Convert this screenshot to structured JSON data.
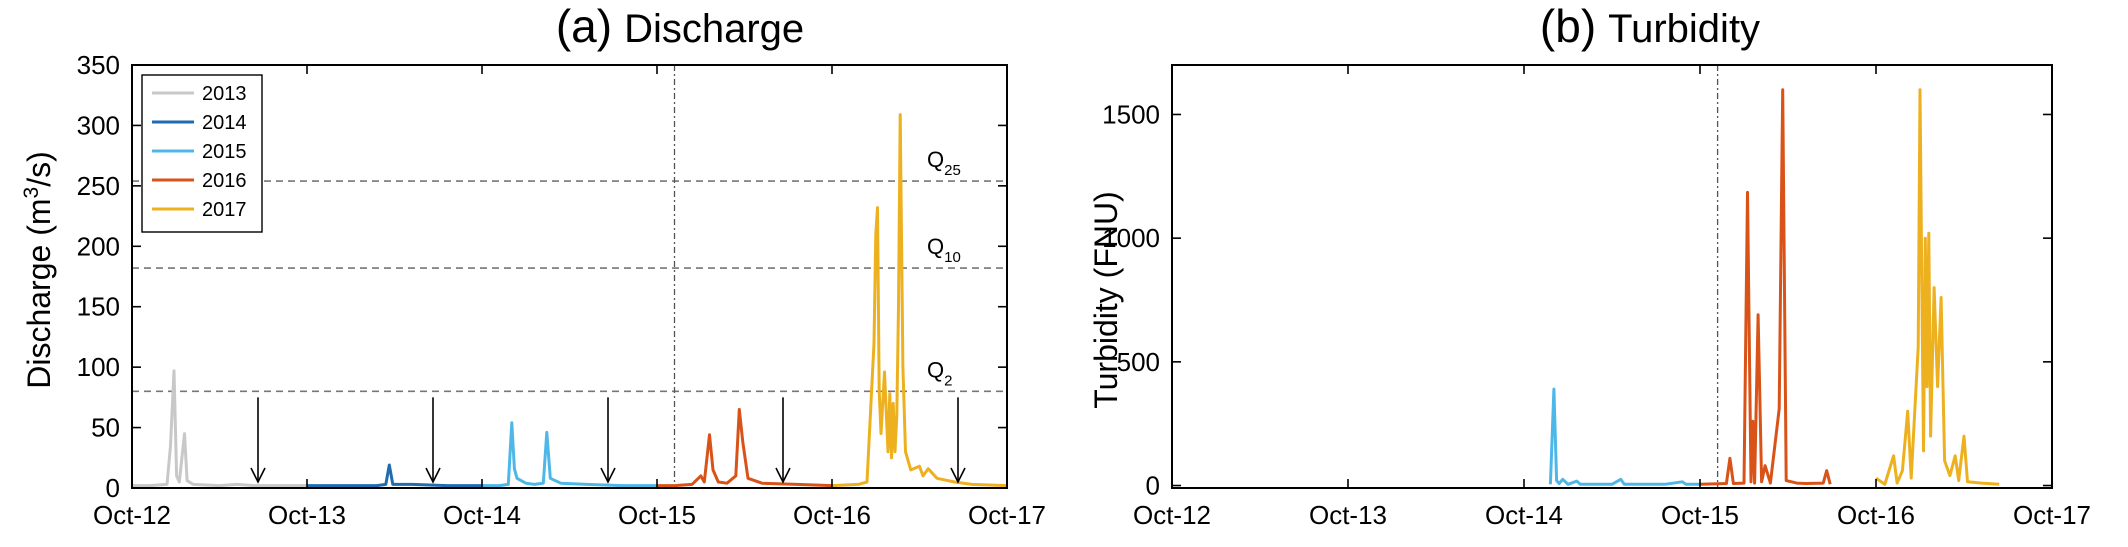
{
  "chart_data": [
    {
      "type": "line",
      "title": "(a) Discharge",
      "title_prefix": "(a)",
      "title_main": "Discharge",
      "xlabel": "",
      "ylabel_pre": "Discharge (m",
      "ylabel_sup": "3",
      "ylabel_post": "/s)",
      "xlim": [
        0,
        5
      ],
      "ylim": [
        0,
        350
      ],
      "xticks": [
        {
          "pos": 0,
          "label": "Oct-12"
        },
        {
          "pos": 1,
          "label": "Oct-13"
        },
        {
          "pos": 2,
          "label": "Oct-14"
        },
        {
          "pos": 3,
          "label": "Oct-15"
        },
        {
          "pos": 4,
          "label": "Oct-16"
        },
        {
          "pos": 5,
          "label": "Oct-17"
        }
      ],
      "yticks": [
        0,
        50,
        100,
        150,
        200,
        250,
        300,
        350
      ],
      "legend_position": "top-left",
      "grid": false,
      "reference_lines": [
        {
          "y": 254,
          "label_main": "Q",
          "label_sub": "25"
        },
        {
          "y": 182,
          "label_main": "Q",
          "label_sub": "10"
        },
        {
          "y": 80,
          "label_main": "Q",
          "label_sub": "2"
        }
      ],
      "vertical_reference": {
        "x": 3.1
      },
      "arrows": [
        {
          "x": 0.72,
          "from_y": 75,
          "to_y": 5
        },
        {
          "x": 1.72,
          "from_y": 75,
          "to_y": 5
        },
        {
          "x": 2.72,
          "from_y": 75,
          "to_y": 5
        },
        {
          "x": 3.72,
          "from_y": 75,
          "to_y": 5
        },
        {
          "x": 4.72,
          "from_y": 75,
          "to_y": 5
        }
      ],
      "series": [
        {
          "name": "2013",
          "color": "#c8c8c8",
          "points": [
            [
              0,
              2
            ],
            [
              0.1,
              2
            ],
            [
              0.2,
              3
            ],
            [
              0.22,
              35
            ],
            [
              0.24,
              97
            ],
            [
              0.255,
              10
            ],
            [
              0.27,
              5
            ],
            [
              0.3,
              45
            ],
            [
              0.315,
              6
            ],
            [
              0.35,
              3
            ],
            [
              0.5,
              2
            ],
            [
              0.6,
              3
            ],
            [
              0.7,
              2
            ],
            [
              0.8,
              2
            ],
            [
              1.0,
              2
            ]
          ]
        },
        {
          "name": "2014",
          "color": "#1f6cb0",
          "points": [
            [
              1.0,
              2
            ],
            [
              1.3,
              2
            ],
            [
              1.4,
              2
            ],
            [
              1.45,
              3
            ],
            [
              1.47,
              19
            ],
            [
              1.49,
              3
            ],
            [
              1.6,
              3
            ],
            [
              1.8,
              2
            ],
            [
              2.0,
              2
            ]
          ]
        },
        {
          "name": "2015",
          "color": "#4db8e8",
          "points": [
            [
              2.0,
              2
            ],
            [
              2.1,
              2
            ],
            [
              2.15,
              3
            ],
            [
              2.17,
              54
            ],
            [
              2.185,
              16
            ],
            [
              2.2,
              8
            ],
            [
              2.25,
              4
            ],
            [
              2.3,
              3
            ],
            [
              2.35,
              4
            ],
            [
              2.37,
              46
            ],
            [
              2.39,
              8
            ],
            [
              2.45,
              4
            ],
            [
              2.6,
              3
            ],
            [
              2.8,
              2
            ],
            [
              3.0,
              2
            ]
          ]
        },
        {
          "name": "2016",
          "color": "#d95319",
          "points": [
            [
              3.0,
              2
            ],
            [
              3.1,
              2
            ],
            [
              3.2,
              3
            ],
            [
              3.25,
              10
            ],
            [
              3.27,
              5
            ],
            [
              3.3,
              44
            ],
            [
              3.32,
              15
            ],
            [
              3.35,
              5
            ],
            [
              3.4,
              4
            ],
            [
              3.45,
              10
            ],
            [
              3.47,
              65
            ],
            [
              3.49,
              38
            ],
            [
              3.52,
              8
            ],
            [
              3.6,
              4
            ],
            [
              3.8,
              3
            ],
            [
              4.0,
              2
            ]
          ]
        },
        {
          "name": "2017",
          "color": "#edb120",
          "points": [
            [
              4.0,
              2
            ],
            [
              4.15,
              3
            ],
            [
              4.2,
              5
            ],
            [
              4.24,
              120
            ],
            [
              4.25,
              210
            ],
            [
              4.26,
              232
            ],
            [
              4.27,
              80
            ],
            [
              4.28,
              45
            ],
            [
              4.3,
              96
            ],
            [
              4.32,
              30
            ],
            [
              4.33,
              78
            ],
            [
              4.34,
              25
            ],
            [
              4.35,
              70
            ],
            [
              4.36,
              30
            ],
            [
              4.37,
              60
            ],
            [
              4.38,
              150
            ],
            [
              4.39,
              309
            ],
            [
              4.405,
              100
            ],
            [
              4.42,
              30
            ],
            [
              4.45,
              15
            ],
            [
              4.5,
              18
            ],
            [
              4.52,
              10
            ],
            [
              4.55,
              16
            ],
            [
              4.6,
              8
            ],
            [
              4.7,
              5
            ],
            [
              4.8,
              3
            ],
            [
              5.0,
              2
            ]
          ]
        }
      ]
    },
    {
      "type": "line",
      "title": "(b) Turbidity",
      "title_prefix": "(b)",
      "title_main": "Turbidity",
      "xlabel": "",
      "ylabel": "Turbidity (FNU)",
      "xlim": [
        0,
        5
      ],
      "ylim": [
        -10,
        1700
      ],
      "xticks": [
        {
          "pos": 0,
          "label": "Oct-12"
        },
        {
          "pos": 1,
          "label": "Oct-13"
        },
        {
          "pos": 2,
          "label": "Oct-14"
        },
        {
          "pos": 3,
          "label": "Oct-15"
        },
        {
          "pos": 4,
          "label": "Oct-16"
        },
        {
          "pos": 5,
          "label": "Oct-17"
        }
      ],
      "yticks": [
        0,
        500,
        1000,
        1500
      ],
      "grid": false,
      "vertical_reference": {
        "x": 3.1
      },
      "series": [
        {
          "name": "2015",
          "color": "#4db8e8",
          "points": [
            [
              2.15,
              5
            ],
            [
              2.17,
              390
            ],
            [
              2.185,
              20
            ],
            [
              2.2,
              8
            ],
            [
              2.22,
              25
            ],
            [
              2.25,
              5
            ],
            [
              2.3,
              18
            ],
            [
              2.32,
              5
            ],
            [
              2.5,
              5
            ],
            [
              2.55,
              25
            ],
            [
              2.57,
              5
            ],
            [
              2.8,
              5
            ],
            [
              2.9,
              15
            ],
            [
              2.92,
              5
            ],
            [
              3.0,
              5
            ]
          ]
        },
        {
          "name": "2016",
          "color": "#d95319",
          "points": [
            [
              3.0,
              5
            ],
            [
              3.15,
              8
            ],
            [
              3.17,
              110
            ],
            [
              3.19,
              8
            ],
            [
              3.25,
              10
            ],
            [
              3.27,
              1185
            ],
            [
              3.29,
              15
            ],
            [
              3.3,
              260
            ],
            [
              3.31,
              10
            ],
            [
              3.33,
              690
            ],
            [
              3.35,
              15
            ],
            [
              3.37,
              80
            ],
            [
              3.4,
              10
            ],
            [
              3.45,
              310
            ],
            [
              3.47,
              1600
            ],
            [
              3.49,
              20
            ],
            [
              3.55,
              10
            ],
            [
              3.6,
              8
            ],
            [
              3.7,
              10
            ],
            [
              3.72,
              60
            ],
            [
              3.74,
              5
            ]
          ]
        },
        {
          "name": "2017",
          "color": "#edb120",
          "points": [
            [
              4.0,
              30
            ],
            [
              4.05,
              5
            ],
            [
              4.1,
              120
            ],
            [
              4.12,
              10
            ],
            [
              4.15,
              60
            ],
            [
              4.18,
              300
            ],
            [
              4.2,
              30
            ],
            [
              4.24,
              560
            ],
            [
              4.25,
              1600
            ],
            [
              4.26,
              830
            ],
            [
              4.27,
              140
            ],
            [
              4.28,
              1000
            ],
            [
              4.29,
              400
            ],
            [
              4.3,
              1020
            ],
            [
              4.31,
              200
            ],
            [
              4.33,
              800
            ],
            [
              4.35,
              400
            ],
            [
              4.37,
              760
            ],
            [
              4.39,
              100
            ],
            [
              4.42,
              40
            ],
            [
              4.45,
              120
            ],
            [
              4.47,
              20
            ],
            [
              4.5,
              200
            ],
            [
              4.52,
              15
            ],
            [
              4.6,
              10
            ],
            [
              4.7,
              5
            ]
          ]
        }
      ]
    }
  ]
}
